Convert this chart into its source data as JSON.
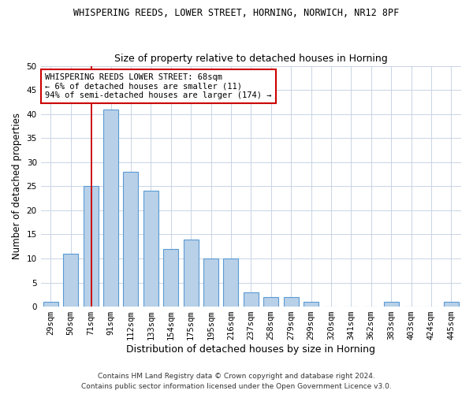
{
  "title1": "WHISPERING REEDS, LOWER STREET, HORNING, NORWICH, NR12 8PF",
  "title2": "Size of property relative to detached houses in Horning",
  "xlabel": "Distribution of detached houses by size in Horning",
  "ylabel": "Number of detached properties",
  "bin_labels": [
    "29sqm",
    "50sqm",
    "71sqm",
    "91sqm",
    "112sqm",
    "133sqm",
    "154sqm",
    "175sqm",
    "195sqm",
    "216sqm",
    "237sqm",
    "258sqm",
    "279sqm",
    "299sqm",
    "320sqm",
    "341sqm",
    "362sqm",
    "383sqm",
    "403sqm",
    "424sqm",
    "445sqm"
  ],
  "bar_values": [
    1,
    11,
    25,
    41,
    28,
    24,
    12,
    14,
    10,
    10,
    3,
    2,
    2,
    1,
    0,
    0,
    0,
    1,
    0,
    0,
    1
  ],
  "bar_color": "#b8d0e8",
  "bar_edge_color": "#5b9bd5",
  "grid_color": "#c8d4e4",
  "vline_x": 2.05,
  "vline_color": "#cc0000",
  "annotation_text": "WHISPERING REEDS LOWER STREET: 68sqm\n← 6% of detached houses are smaller (11)\n94% of semi-detached houses are larger (174) →",
  "annotation_box_color": "#ffffff",
  "annotation_box_edge": "#cc0000",
  "footer1": "Contains HM Land Registry data © Crown copyright and database right 2024.",
  "footer2": "Contains public sector information licensed under the Open Government Licence v3.0.",
  "ylim": [
    0,
    50
  ],
  "yticks": [
    0,
    5,
    10,
    15,
    20,
    25,
    30,
    35,
    40,
    45,
    50
  ],
  "title1_fontsize": 8.5,
  "title2_fontsize": 9.0,
  "ylabel_fontsize": 8.5,
  "xlabel_fontsize": 9.0,
  "tick_fontsize": 7.5,
  "footer_fontsize": 6.5,
  "annotation_fontsize": 7.5
}
